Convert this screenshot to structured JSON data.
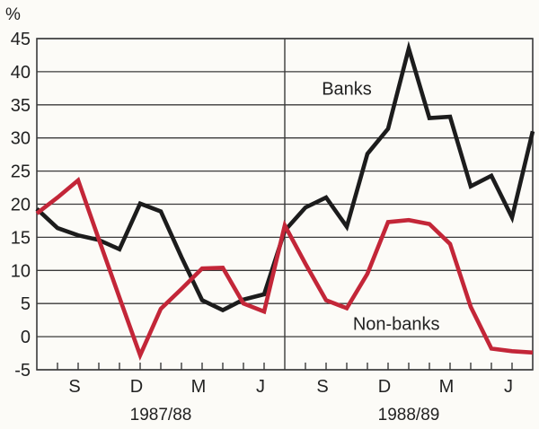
{
  "chart_data": {
    "type": "line",
    "title": "",
    "ylabel": "%",
    "xlabel": "",
    "ylim": [
      -5,
      45
    ],
    "grid": "horizontal",
    "legend_position": "inline-annotations",
    "colors": {
      "banks": "#1c1c1c",
      "non_banks": "#c32638",
      "axis": "#3a3a3a",
      "background": "#fcfbf7",
      "text": "#222222"
    },
    "ytick_values": [
      45,
      40,
      35,
      30,
      25,
      20,
      15,
      10,
      5,
      0,
      -5
    ],
    "ytick_labels": [
      "45",
      "40",
      "35",
      "30",
      "25",
      "20",
      "15",
      "10",
      "5",
      "0",
      "-5"
    ],
    "xtick_labels": [
      {
        "label": "S",
        "month_index": 2
      },
      {
        "label": "D",
        "month_index": 5
      },
      {
        "label": "M",
        "month_index": 8
      },
      {
        "label": "J",
        "month_index": 11
      },
      {
        "label": "S",
        "month_index": 14
      },
      {
        "label": "D",
        "month_index": 17
      },
      {
        "label": "M",
        "month_index": 20
      },
      {
        "label": "J",
        "month_index": 23
      }
    ],
    "year_labels": [
      {
        "label": "1987/88",
        "span_months": [
          0,
          12
        ]
      },
      {
        "label": "1988/89",
        "span_months": [
          12,
          24
        ]
      }
    ],
    "fiscal_year_divider_month": 12,
    "series": [
      {
        "name": "Banks",
        "color": "#1c1c1c",
        "values": [
          19.3,
          16.4,
          15.3,
          14.6,
          13.2,
          20.1,
          18.9,
          12.0,
          5.5,
          4.0,
          5.6,
          6.4,
          16.0,
          19.5,
          21.0,
          16.6,
          27.6,
          31.4,
          43.5,
          33.0,
          33.2,
          22.7,
          24.3,
          18.0,
          31.0
        ]
      },
      {
        "name": "Non-banks",
        "color": "#c32638",
        "values": [
          18.6,
          21.0,
          23.6,
          14.7,
          5.9,
          -2.8,
          4.2,
          7.2,
          10.3,
          10.4,
          5.0,
          3.8,
          16.8,
          11.0,
          5.5,
          4.3,
          9.5,
          17.3,
          17.6,
          17.0,
          14.0,
          4.5,
          -1.8,
          -2.2,
          -2.4
        ]
      }
    ],
    "annotations": [
      {
        "text": "Banks",
        "x_month": 15.0,
        "y_value": 37.5
      },
      {
        "text": "Non-banks",
        "x_month": 17.4,
        "y_value": 2.0
      }
    ]
  }
}
